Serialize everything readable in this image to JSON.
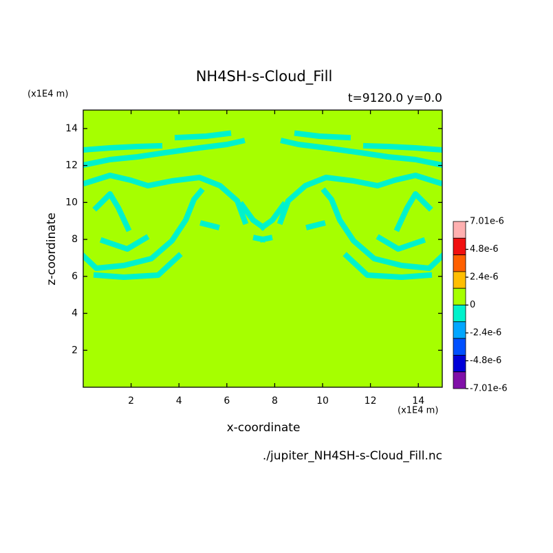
{
  "chart_data": {
    "type": "contour",
    "title": "NH4SH-s-Cloud_Fill",
    "subtitle": "t=9120.0 y=0.0",
    "x_label": "x-coordinate",
    "y_label": "z-coordinate",
    "x_unit": "(x1E4 m)",
    "y_unit": "(x1E4 m)",
    "source": "./jupiter_NH4SH-s-Cloud_Fill.nc",
    "xlim": [
      0,
      15
    ],
    "xticks": [
      2,
      4,
      6,
      8,
      10,
      12,
      14
    ],
    "ylim": [
      0,
      15
    ],
    "yticks": [
      2,
      4,
      6,
      8,
      10,
      12,
      14
    ],
    "field_color": "#a6ff00",
    "colorbar_colors": [
      "#ffb0b0",
      "#f01010",
      "#ff6000",
      "#ffbe00",
      "#a6ff00",
      "#00f2cc",
      "#00a6ff",
      "#0050ff",
      "#0000d8",
      "#8010a8"
    ],
    "colorbar_levels": [
      {
        "value": 7.01e-06,
        "label": "7.01e-6"
      },
      {
        "value": 4.8e-06,
        "label": "4.8e-6"
      },
      {
        "value": 2.4e-06,
        "label": "2.4e-6"
      },
      0,
      {
        "value": -2.4e-06,
        "label": "-2.4e-6"
      },
      {
        "value": -4.8e-06,
        "label": "-4.8e-6"
      },
      {
        "value": -7.01e-06,
        "label": "-7.01e-6"
      }
    ]
  }
}
